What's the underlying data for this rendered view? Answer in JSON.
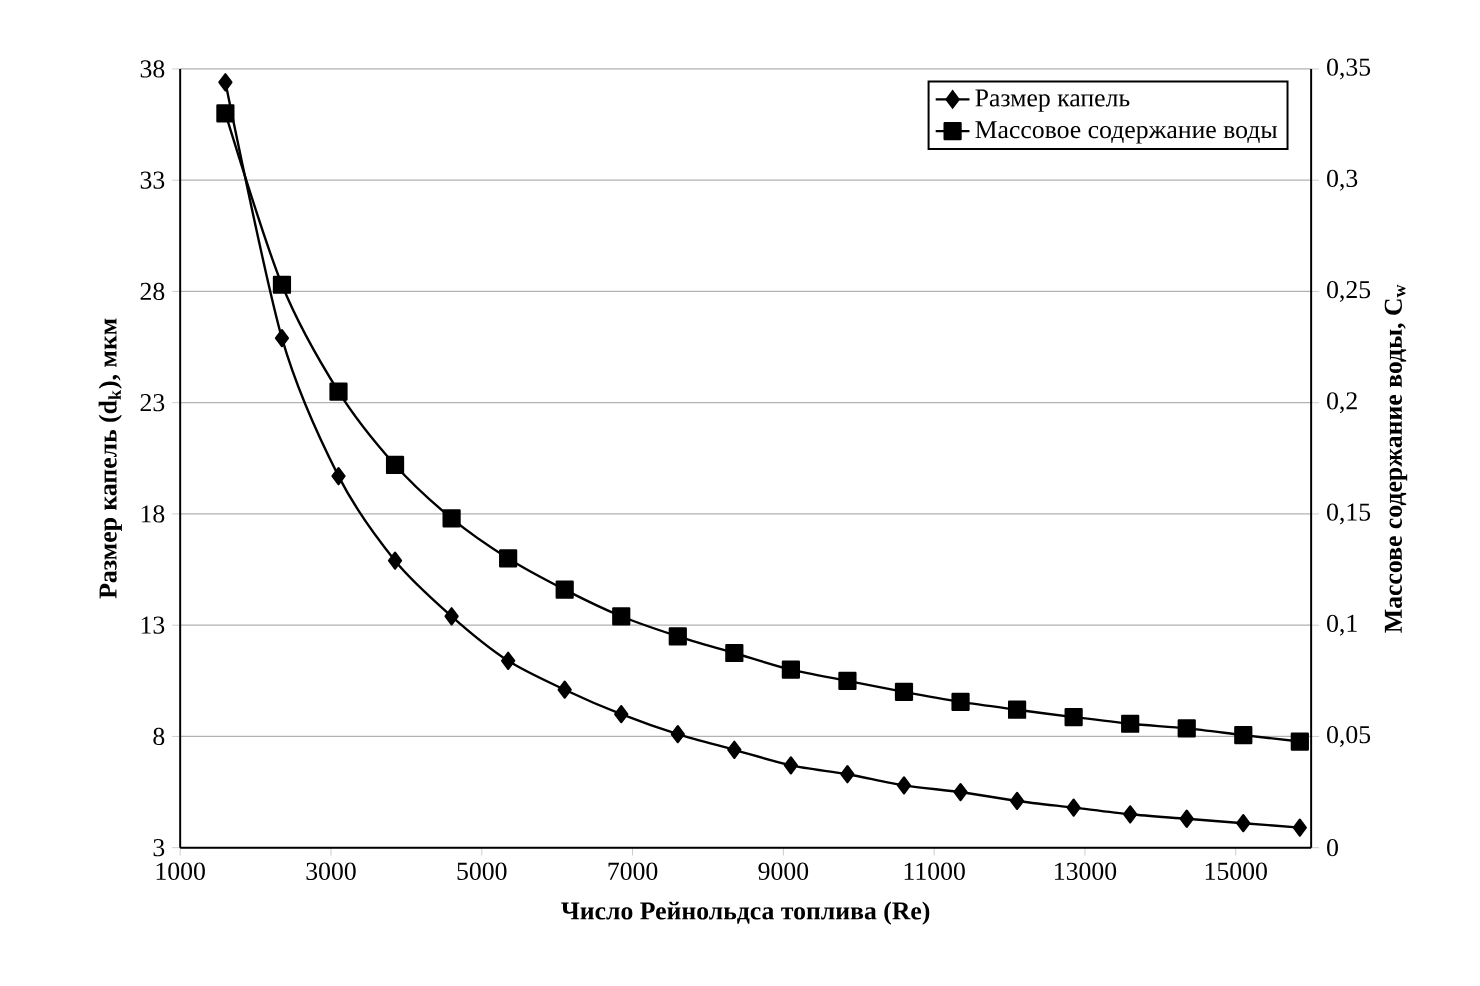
{
  "chart_data": {
    "type": "line",
    "xlabel": "Число Рейнольдса топлива (Re)",
    "ylabel": "Размер капель (d$_{k}$), мкм",
    "y2label": "Массове содержание воды, C$_{w}$",
    "x": [
      1600,
      2350,
      3100,
      3850,
      4600,
      5350,
      6100,
      6850,
      7600,
      8350,
      9100,
      9850,
      10600,
      11350,
      12100,
      12850,
      13600,
      14350,
      15100,
      15850
    ],
    "series": [
      {
        "name": "Размер капель",
        "color": "#000000",
        "marker": "diamond",
        "values": [
          37.4,
          25.9,
          19.7,
          15.9,
          13.4,
          11.4,
          10.1,
          9.0,
          8.1,
          7.4,
          6.7,
          6.3,
          5.8,
          5.5,
          5.1,
          4.8,
          4.5,
          4.3,
          4.1,
          3.9
        ]
      },
      {
        "name": "Массовое содержание воды",
        "color": "#000000",
        "marker": "square",
        "axis": "y2",
        "values": [
          0.33,
          0.253,
          0.205,
          0.172,
          0.148,
          0.13,
          0.116,
          0.104,
          0.095,
          0.0875,
          0.08,
          0.075,
          0.07,
          0.0655,
          0.062,
          0.0587,
          0.0557,
          0.0536,
          0.0506,
          0.0477
        ]
      }
    ],
    "xlim": [
      1000,
      16000
    ],
    "xticks": [
      1000,
      3000,
      5000,
      7000,
      9000,
      11000,
      13000,
      15000
    ],
    "ylim": [
      3,
      38
    ],
    "yticks": [
      3,
      8,
      13,
      18,
      23,
      28,
      33,
      38
    ],
    "y2lim": [
      0,
      0.35
    ],
    "y2ticks": [
      0,
      {
        "value": 0.05,
        "label": "0,05"
      },
      {
        "value": 0.1,
        "label": "0,1"
      },
      {
        "value": 0.15,
        "label": "0,15"
      },
      {
        "value": 0.2,
        "label": "0,2"
      },
      {
        "value": 0.25,
        "label": "0,25"
      },
      {
        "value": 0.3,
        "label": "0,3"
      },
      {
        "value": 0.35,
        "label": "0,35"
      }
    ],
    "grid": "y",
    "legend": "top right"
  }
}
